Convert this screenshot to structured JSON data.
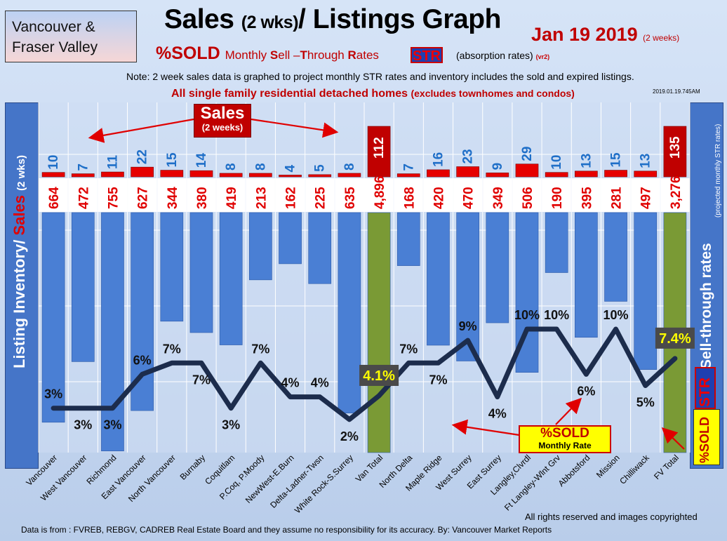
{
  "region": {
    "line1": "Vancouver &",
    "line2": "Fraser Valley"
  },
  "title": {
    "main": "Sales",
    "main_small": "(2 wks)",
    "main_rest": "/ Listings Graph"
  },
  "date": {
    "text": "Jan  19  2019",
    "small": "(2 weeks)"
  },
  "subtitle": {
    "pct": "%SOLD",
    "monthly": "Monthly",
    "s": "S",
    "ell": "ell –",
    "t": "T",
    "hrough": "hrough",
    "r": "R",
    "ates": "ates",
    "str": "STR",
    "absorb": "(absorption rates)",
    "vr": "(vr2)"
  },
  "note": "Note: 2 week sales data is graphed to project monthly STR rates and inventory includes the sold and expired listings.",
  "family": {
    "main": "All single family residential detached homes",
    "small": "(excludes townhomes and condos)"
  },
  "stamp": "2019.01.19.745AM",
  "left_axis": {
    "listing": "Listing Inventory",
    "slash": "/",
    "sales": "Sales",
    "wks": "(2  wks)"
  },
  "right_axis": {
    "main": "Sell-through rates",
    "sub": "(projected monthly STR rates)",
    "str": "STR",
    "sold": "%SOLD"
  },
  "callouts": {
    "sales_big": "Sales",
    "sales_small": "(2 weeks)",
    "sold_big": "%SOLD",
    "sold_small": "Monthly Rate"
  },
  "footer": {
    "copyright": "All rights reserved and  images copyrighted",
    "source": "Data is from : FVREB, REBGV, CADREB Real Estate Board and they assume no responsibility for its accuracy. By: Vancouver Market Reports"
  },
  "colors": {
    "inventory_bar": "#4a7fd4",
    "total_bar": "#7a9a35",
    "sales_bar": "#e60000",
    "total_sales_bar": "#c00000",
    "line": "#1c2c4c",
    "sales_label": "#1f6fc8",
    "inventory_label": "#e00000",
    "total_pct_bg": "#4a4a4a",
    "total_pct_text": "#ffff00"
  },
  "chart_data": {
    "type": "bar",
    "categories": [
      "Vancouver",
      "West Vancouver",
      "Richmond",
      "East Vancouver",
      "North Vancouver",
      "Burnaby",
      "Coquitlam",
      "P.Coq, P.Moody",
      "NewWest-E.Burn",
      "Delta-Ladner-Twsn",
      "White Rock-S.Surrey",
      "Van Total",
      "North Delta",
      "Maple Ridge",
      "West Surrey",
      "East Surrey",
      "Langley,Clvrdl",
      "Ft Langley-Wlnt Grv",
      "Abbotsford",
      "Mission",
      "Chilliwack",
      "FV Total"
    ],
    "series": [
      {
        "values": [
          10,
          7,
          11,
          22,
          15,
          14,
          8,
          8,
          4,
          5,
          8,
          112,
          7,
          16,
          23,
          9,
          29,
          10,
          13,
          15,
          13,
          135
        ],
        "labels": [
          "10",
          "7",
          "11",
          "22",
          "15",
          "14",
          "8",
          "8",
          "4",
          "5",
          "8",
          "112",
          "7",
          "16",
          "23",
          "9",
          "29",
          "10",
          "13",
          "15",
          "13",
          "135"
        ]
      },
      {
        "values": [
          664,
          472,
          755,
          627,
          344,
          380,
          419,
          213,
          162,
          225,
          635,
          4896,
          168,
          420,
          470,
          349,
          506,
          190,
          395,
          281,
          497,
          3276
        ],
        "labels": [
          "664",
          "472",
          "755",
          "627",
          "344",
          "380",
          "419",
          "213",
          "162",
          "225",
          "635",
          "4,896",
          "168",
          "420",
          "470",
          "349",
          "506",
          "190",
          "395",
          "281",
          "497",
          "3,276"
        ]
      },
      {
        "type": "line",
        "values": [
          3,
          3,
          3,
          6,
          7,
          7,
          3,
          7,
          4,
          4,
          2,
          4.1,
          7,
          7,
          9,
          4,
          10,
          10,
          6,
          10,
          5,
          7.4
        ],
        "labels": [
          "3%",
          "3%",
          "3%",
          "6%",
          "7%",
          "7%",
          "3%",
          "7%",
          "4%",
          "4%",
          "2%",
          "4.1%",
          "7%",
          "7%",
          "9%",
          "4%",
          "10%",
          "10%",
          "6%",
          "10%",
          "5%",
          "7.4%"
        ]
      }
    ],
    "totals": [
      "Van Total",
      "FV Total"
    ],
    "grid": true
  }
}
